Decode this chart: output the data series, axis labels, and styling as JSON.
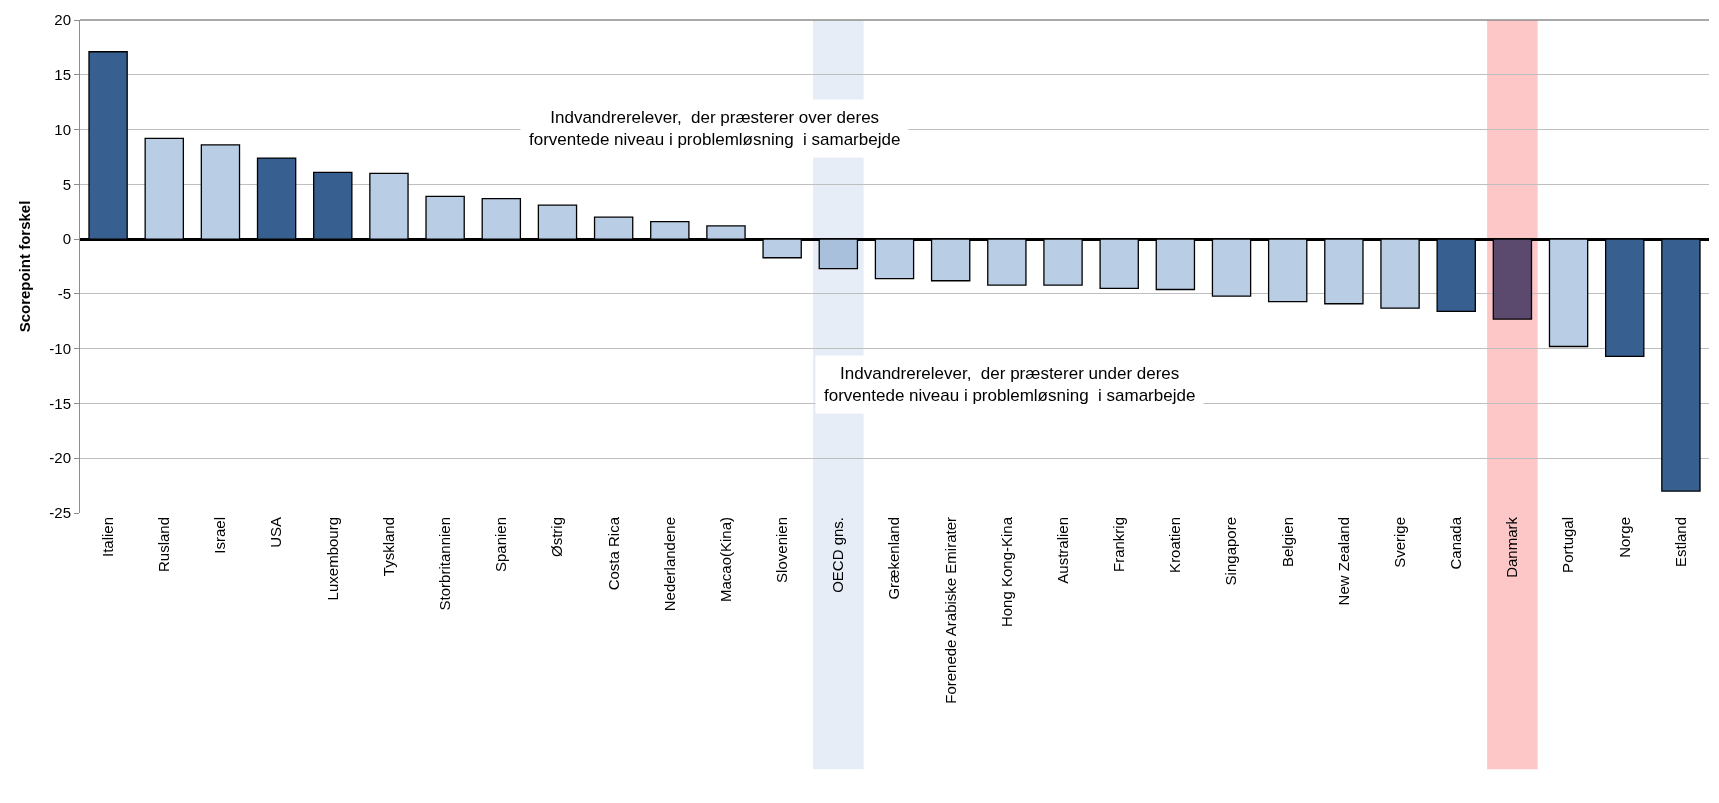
{
  "chart_data": {
    "type": "bar",
    "ylabel": "Scorepoint forskel",
    "categories": [
      "Italien",
      "Rusland",
      "Israel",
      "USA",
      "Luxembourg",
      "Tyskland",
      "Storbritannien",
      "Spanien",
      "Østrig",
      "Costa Rica",
      "Nederlandene",
      "Macao(Kina)",
      "Slovenien",
      "OECD gns.",
      "Grækenland",
      "Forenede Arabiske Emirater",
      "Hong Kong-Kina",
      "Australien",
      "Frankrig",
      "Kroatien",
      "Singapore",
      "Belgien",
      "New Zealand",
      "Sverige",
      "Canada",
      "Danmark",
      "Portugal",
      "Norge",
      "Estland"
    ],
    "values": [
      17.1,
      9.2,
      8.6,
      7.4,
      6.1,
      6.0,
      3.9,
      3.7,
      3.1,
      2.0,
      1.6,
      1.2,
      -1.7,
      -2.7,
      -3.6,
      -3.8,
      -4.2,
      -4.2,
      -4.5,
      -4.6,
      -5.2,
      -5.7,
      -5.9,
      -6.3,
      -6.6,
      -7.3,
      -9.8,
      -10.7,
      -23.0
    ],
    "colors": [
      "#375f8f",
      "#b9cde5",
      "#b9cde5",
      "#375f8f",
      "#375f8f",
      "#b9cde5",
      "#b9cde5",
      "#b9cde5",
      "#b9cde5",
      "#b9cde5",
      "#b9cde5",
      "#b9cde5",
      "#b9cde5",
      "#a9c0dd",
      "#b9cde5",
      "#b9cde5",
      "#b9cde5",
      "#b9cde5",
      "#b9cde5",
      "#b9cde5",
      "#b9cde5",
      "#b9cde5",
      "#b9cde5",
      "#b9cde5",
      "#375f8f",
      "#5c4a6e",
      "#b9cde5",
      "#375f8f",
      "#375f8f"
    ],
    "ylim": [
      -25,
      20
    ],
    "yticks": [
      -25,
      -20,
      -15,
      -10,
      -5,
      0,
      5,
      10,
      15,
      20
    ],
    "grid": "y",
    "bands": [
      {
        "axis": "x",
        "from": "OECD gns.",
        "to": "OECD gns.",
        "label": null,
        "color": "#e6edf6"
      },
      {
        "axis": "x",
        "from": "Danmark",
        "to": "Danmark",
        "label": null,
        "color": "#fdc7c7"
      }
    ],
    "annotations": [
      "Indvandrerelever,  der præsterer over deres\nforventede niveau i problemløsning  i samarbejde",
      "Indvandrerelever,  der præsterer under deres\nforventede niveau i problemløsning  i samarbejde"
    ]
  }
}
